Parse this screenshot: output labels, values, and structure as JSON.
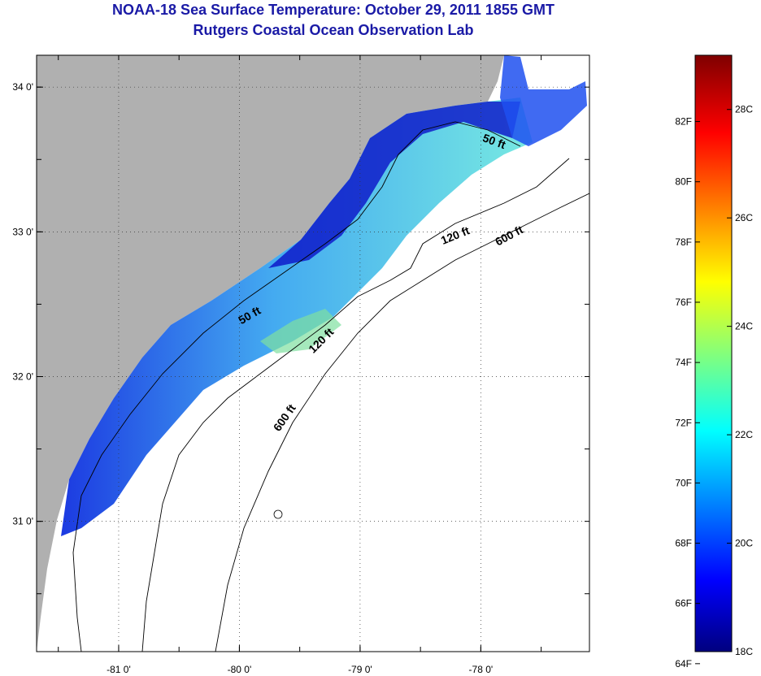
{
  "header": {
    "title": "NOAA-18 Sea Surface Temperature:  October 29, 2011 1855 GMT",
    "subtitle": "Rutgers Coastal Ocean Observation Lab"
  },
  "map": {
    "lon_range": [
      -81.68,
      -77.1
    ],
    "lat_range": [
      30.1,
      34.22
    ],
    "lon_ticks": [
      {
        "value": -81,
        "label": "-81 0'"
      },
      {
        "value": -80,
        "label": "-80 0'"
      },
      {
        "value": -79,
        "label": "-79 0'"
      },
      {
        "value": -78,
        "label": "-78 0'"
      }
    ],
    "lat_ticks": [
      {
        "value": 34,
        "label": "34 0'"
      },
      {
        "value": 33,
        "label": "33 0'"
      },
      {
        "value": 32,
        "label": "32 0'"
      },
      {
        "value": 31,
        "label": "31 0'"
      }
    ],
    "contour_labels": [
      {
        "text": "50 ft",
        "lon": -77.9,
        "lat": 33.6,
        "angle": 20
      },
      {
        "text": "120 ft",
        "lon": -78.2,
        "lat": 32.95,
        "angle": -22
      },
      {
        "text": "600 ft",
        "lon": -77.75,
        "lat": 32.95,
        "angle": -28
      },
      {
        "text": "50 ft",
        "lon": -79.9,
        "lat": 32.4,
        "angle": -30
      },
      {
        "text": "120 ft",
        "lon": -79.3,
        "lat": 32.23,
        "angle": -45
      },
      {
        "text": "600 ft",
        "lon": -79.6,
        "lat": 31.7,
        "angle": -55
      }
    ],
    "colors": {
      "land": "#b0b0b0",
      "ocean_no_data": "#ffffff",
      "coast_line": "#000000"
    }
  },
  "colorbar": {
    "f_labels": [
      "82F",
      "80F",
      "78F",
      "76F",
      "74F",
      "72F",
      "70F",
      "68F",
      "66F",
      "64F"
    ],
    "c_labels": [
      "28C",
      "26C",
      "24C",
      "22C",
      "20C",
      "18C"
    ],
    "range_c": [
      18,
      29
    ]
  }
}
